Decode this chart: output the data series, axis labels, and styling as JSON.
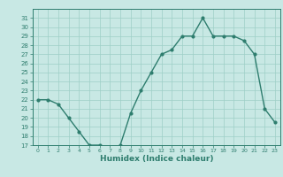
{
  "x": [
    0,
    1,
    2,
    3,
    4,
    5,
    6,
    7,
    8,
    9,
    10,
    11,
    12,
    13,
    14,
    15,
    16,
    17,
    18,
    19,
    20,
    21,
    22,
    23
  ],
  "y": [
    22,
    22,
    21.5,
    20,
    18.5,
    17,
    17,
    16.5,
    17,
    20.5,
    23,
    25,
    27,
    27.5,
    29,
    29,
    31,
    29,
    29,
    29,
    28.5,
    27,
    21,
    19.5
  ],
  "line_color": "#2e7d6e",
  "marker": "o",
  "marker_size": 2.0,
  "bg_color": "#c8e8e4",
  "grid_color": "#9ecfc7",
  "xlabel": "Humidex (Indice chaleur)",
  "ylim": [
    17,
    32
  ],
  "xlim": [
    -0.5,
    23.5
  ],
  "yticks": [
    17,
    18,
    19,
    20,
    21,
    22,
    23,
    24,
    25,
    26,
    27,
    28,
    29,
    30,
    31
  ],
  "xticks": [
    0,
    1,
    2,
    3,
    4,
    5,
    6,
    7,
    8,
    9,
    10,
    11,
    12,
    13,
    14,
    15,
    16,
    17,
    18,
    19,
    20,
    21,
    22,
    23
  ],
  "tick_color": "#2e7d6e",
  "label_color": "#2e7d6e",
  "axis_color": "#2e7d6e",
  "tick_fontsize": 5.5,
  "xlabel_fontsize": 6.5,
  "linewidth": 1.0
}
